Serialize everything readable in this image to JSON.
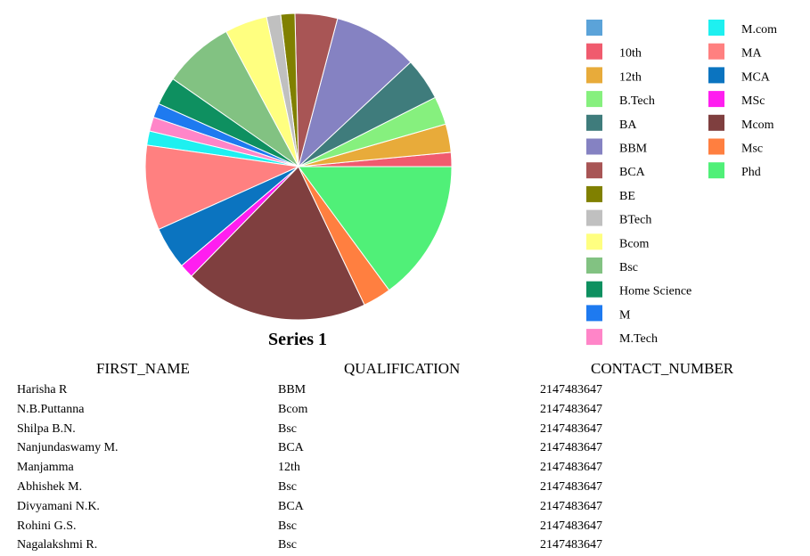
{
  "chart_data": {
    "type": "pie",
    "title": "Series 1",
    "legend_position": "right",
    "slices": [
      {
        "label": "",
        "value": 0,
        "color": "#5BA3D9"
      },
      {
        "label": "10th",
        "value": 1,
        "color": "#F05B6E"
      },
      {
        "label": "12th",
        "value": 2,
        "color": "#E8AB3A"
      },
      {
        "label": "B.Tech",
        "value": 2,
        "color": "#86F07E"
      },
      {
        "label": "BA",
        "value": 3,
        "color": "#3F7C7C"
      },
      {
        "label": "BBM",
        "value": 6,
        "color": "#8582C2"
      },
      {
        "label": "BCA",
        "value": 3,
        "color": "#A85555"
      },
      {
        "label": "BE",
        "value": 1,
        "color": "#808000"
      },
      {
        "label": "BTech",
        "value": 1,
        "color": "#C0C0C0"
      },
      {
        "label": "Bcom",
        "value": 3,
        "color": "#FFFF80"
      },
      {
        "label": "Bsc",
        "value": 5,
        "color": "#82C282"
      },
      {
        "label": "Home Science",
        "value": 2,
        "color": "#0E9060"
      },
      {
        "label": "M",
        "value": 1,
        "color": "#1E7AF0"
      },
      {
        "label": "M.Tech",
        "value": 1,
        "color": "#FF85C8"
      },
      {
        "label": "M.com",
        "value": 1,
        "color": "#1EF0F0"
      },
      {
        "label": "MA",
        "value": 6,
        "color": "#FF8080"
      },
      {
        "label": "MCA",
        "value": 3,
        "color": "#0B74C0"
      },
      {
        "label": "MSc",
        "value": 1,
        "color": "#FF1EF0"
      },
      {
        "label": "Mcom",
        "value": 13,
        "color": "#7F3F3F"
      },
      {
        "label": "Msc",
        "value": 2,
        "color": "#FF7F40"
      },
      {
        "label": "Phd",
        "value": 10,
        "color": "#50F078"
      }
    ]
  },
  "table": {
    "headers": [
      "FIRST_NAME",
      "QUALIFICATION",
      "CONTACT_NUMBER"
    ],
    "rows": [
      [
        "Harisha R",
        "BBM",
        "2147483647"
      ],
      [
        "N.B.Puttanna",
        "Bcom",
        "2147483647"
      ],
      [
        "Shilpa B.N.",
        "Bsc",
        "2147483647"
      ],
      [
        "Nanjundaswamy M.",
        "BCA",
        "2147483647"
      ],
      [
        "Manjamma",
        "12th",
        "2147483647"
      ],
      [
        "Abhishek M.",
        "Bsc",
        "2147483647"
      ],
      [
        "Divyamani N.K.",
        "BCA",
        "2147483647"
      ],
      [
        "Rohini G.S.",
        "Bsc",
        "2147483647"
      ],
      [
        "Nagalakshmi R.",
        "Bsc",
        "2147483647"
      ]
    ]
  }
}
